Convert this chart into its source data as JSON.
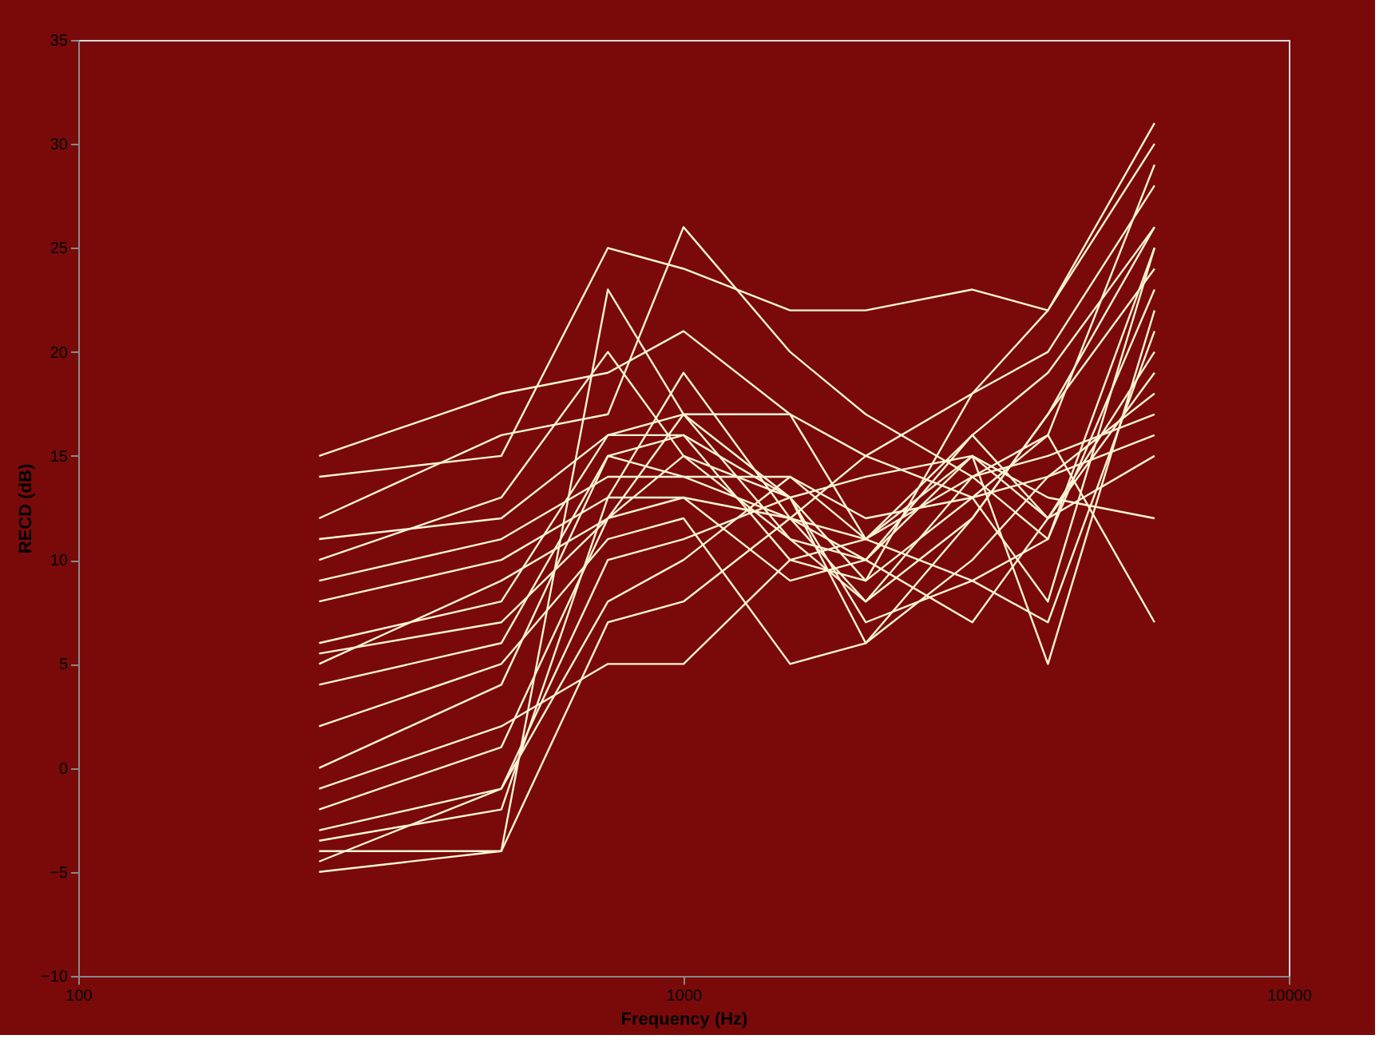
{
  "chart_data": {
    "type": "line",
    "xlabel": "Frequency (Hz)",
    "ylabel": "RECD (dB)",
    "log": "x",
    "grid": false,
    "legend": false,
    "marker": "none",
    "line_style": "solid",
    "x": [
      250,
      500,
      750,
      1000,
      1500,
      2000,
      3000,
      4000,
      6000
    ],
    "xlim": [
      100,
      10000
    ],
    "xticks": [
      100,
      1000,
      10000
    ],
    "ylim": [
      -10,
      35
    ],
    "yticks": [
      -10,
      -5,
      0,
      5,
      10,
      15,
      20,
      25,
      30,
      35
    ],
    "series": [
      {
        "color": "#fff5d6",
        "values": [
          15,
          18,
          19,
          21,
          17,
          15,
          18,
          22,
          31
        ]
      },
      {
        "color": "#fff5d6",
        "values": [
          14,
          15,
          25,
          24,
          22,
          22,
          23,
          22,
          30
        ]
      },
      {
        "color": "#fff5d6",
        "values": [
          12,
          16,
          17,
          26,
          20,
          17,
          14,
          16,
          29
        ]
      },
      {
        "color": "#fff5d6",
        "values": [
          11,
          12,
          16,
          17,
          17,
          11,
          15,
          13,
          12
        ]
      },
      {
        "color": "#fff5d6",
        "values": [
          10,
          13,
          20,
          15,
          13,
          9,
          18,
          20,
          28
        ]
      },
      {
        "color": "#fff5d6",
        "values": [
          9,
          11,
          14,
          14,
          12,
          10,
          16,
          19,
          26
        ]
      },
      {
        "color": "#fff5d6",
        "values": [
          8,
          10,
          13,
          13,
          12,
          8,
          14,
          11,
          25
        ]
      },
      {
        "color": "#fff5d6",
        "values": [
          6,
          8,
          16,
          16,
          13,
          6,
          12,
          17,
          24
        ]
      },
      {
        "color": "#fff5d6",
        "values": [
          5.5,
          7,
          12,
          15,
          11,
          10,
          15,
          5,
          22
        ]
      },
      {
        "color": "#fff5d6",
        "values": [
          5,
          9,
          12,
          13,
          9,
          10,
          7,
          12,
          20
        ]
      },
      {
        "color": "#fff5d6",
        "values": [
          4,
          6,
          15,
          14,
          14,
          12,
          13,
          16,
          7
        ]
      },
      {
        "color": "#fff5d6",
        "values": [
          2,
          5,
          11,
          12,
          5,
          6,
          10,
          14,
          18
        ]
      },
      {
        "color": "#fff5d6",
        "values": [
          0,
          4,
          15,
          16,
          10,
          11,
          14,
          15,
          17
        ]
      },
      {
        "color": "#fff5d6",
        "values": [
          -1,
          2,
          5,
          5,
          10,
          9,
          13,
          14,
          16
        ]
      },
      {
        "color": "#fff5d6",
        "values": [
          -2,
          1,
          12,
          17,
          11,
          8,
          12,
          17,
          26
        ]
      },
      {
        "color": "#fff5d6",
        "values": [
          -3,
          -1,
          10,
          11,
          13,
          14,
          15,
          12,
          15
        ]
      },
      {
        "color": "#fff5d6",
        "values": [
          -3.5,
          -2,
          13,
          19,
          12,
          11,
          16,
          12,
          19
        ]
      },
      {
        "color": "#fff5d6",
        "values": [
          -4,
          -4,
          23,
          17,
          13,
          7,
          9,
          11,
          23
        ]
      },
      {
        "color": "#fff5d6",
        "values": [
          -4.5,
          -1,
          8,
          10,
          14,
          11,
          9,
          7,
          21
        ]
      },
      {
        "color": "#fff5d6",
        "values": [
          -5,
          -4,
          7,
          8,
          12,
          15,
          13,
          8,
          25
        ]
      }
    ]
  }
}
